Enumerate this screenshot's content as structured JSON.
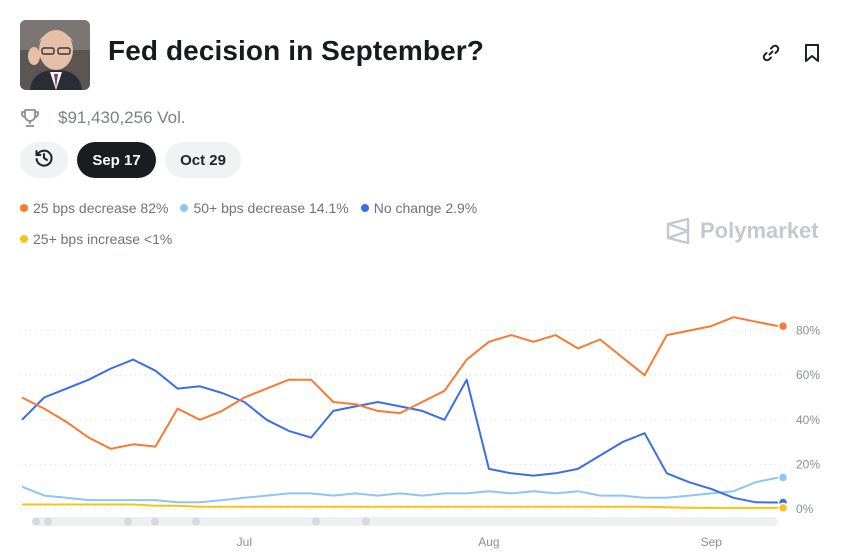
{
  "header": {
    "title": "Fed decision in September?",
    "volume": "$91,430,256 Vol."
  },
  "icons": {
    "avatar": "chairman-portrait",
    "link": "link-icon",
    "bookmark": "bookmark-icon",
    "volume": "trophy-icon",
    "history": "history-clock-icon"
  },
  "date_tabs": {
    "selected": "Sep 17",
    "other": "Oct 29"
  },
  "legend": [
    {
      "label": "25 bps decrease 82%",
      "color": "#f97a2f"
    },
    {
      "label": "50+ bps decrease 14.1%",
      "color": "#8ec5f5"
    },
    {
      "label": "No change 2.9%",
      "color": "#3a6ee8"
    },
    {
      "label": "25+ bps increase <1%",
      "color": "#f6c417"
    }
  ],
  "watermark": "Polymarket",
  "chart_data": {
    "type": "line",
    "x_ticks": [
      "Jul",
      "Aug",
      "Sep"
    ],
    "y_ticks": [
      "80%",
      "60%",
      "40%",
      "20%",
      "0%"
    ],
    "ylim": [
      0,
      100
    ],
    "grid": true,
    "x": [
      "Jun 1",
      "Jun 4",
      "Jun 7",
      "Jun 10",
      "Jun 13",
      "Jun 16",
      "Jun 19",
      "Jun 22",
      "Jun 25",
      "Jun 28",
      "Jul 1",
      "Jul 4",
      "Jul 7",
      "Jul 10",
      "Jul 13",
      "Jul 16",
      "Jul 19",
      "Jul 22",
      "Jul 25",
      "Jul 28",
      "Jul 31",
      "Aug 3",
      "Aug 6",
      "Aug 9",
      "Aug 12",
      "Aug 15",
      "Aug 18",
      "Aug 21",
      "Aug 24",
      "Aug 27",
      "Aug 30",
      "Sep 2",
      "Sep 5",
      "Sep 8",
      "Sep 11"
    ],
    "series": [
      {
        "name": "25 bps decrease",
        "color": "#f97a2f",
        "values": [
          50,
          45,
          39,
          32,
          27,
          29,
          28,
          45,
          40,
          44,
          50,
          54,
          58,
          58,
          48,
          47,
          44,
          43,
          48,
          53,
          67,
          75,
          78,
          75,
          78,
          72,
          76,
          68,
          60,
          78,
          80,
          82,
          86,
          84,
          82
        ]
      },
      {
        "name": "50+ bps decrease",
        "color": "#8ec5f5",
        "values": [
          10,
          6,
          5,
          4,
          4,
          4,
          4,
          3,
          3,
          4,
          5,
          6,
          7,
          7,
          6,
          7,
          6,
          7,
          6,
          7,
          7,
          8,
          7,
          8,
          7,
          8,
          6,
          6,
          5,
          5,
          6,
          7,
          8,
          12,
          14.1
        ]
      },
      {
        "name": "No change",
        "color": "#3a6ee8",
        "values": [
          40,
          50,
          54,
          58,
          63,
          67,
          62,
          54,
          55,
          52,
          48,
          40,
          35,
          32,
          44,
          46,
          48,
          46,
          44,
          40,
          58,
          18,
          16,
          15,
          16,
          18,
          24,
          30,
          34,
          16,
          12,
          9,
          5,
          3,
          2.9
        ]
      },
      {
        "name": "25+ bps increase",
        "color": "#f6c417",
        "values": [
          2,
          2,
          2,
          2,
          2,
          2,
          1.5,
          1.5,
          1,
          1,
          1,
          1,
          1,
          1,
          1,
          1,
          1,
          1,
          1,
          1,
          1,
          1,
          1,
          1,
          1,
          1,
          1,
          1,
          1,
          0.8,
          0.6,
          0.5,
          0.5,
          0.5,
          0.5
        ]
      }
    ]
  }
}
